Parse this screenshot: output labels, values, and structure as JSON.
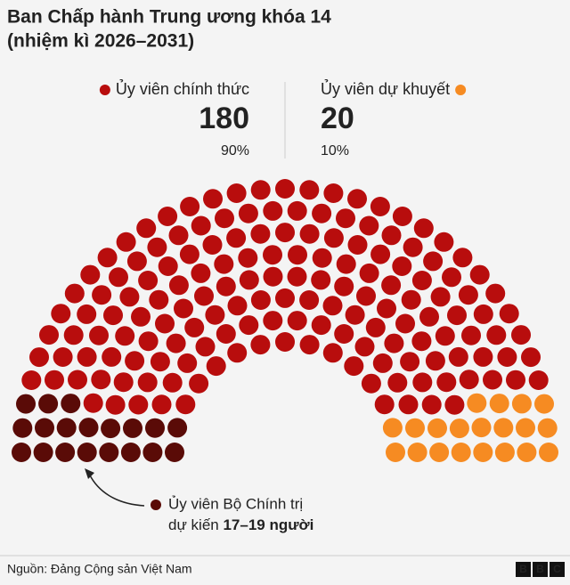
{
  "chart_data": {
    "type": "parliament",
    "title": [
      "Ban Chấp hành Trung ương khóa 14",
      "(nhiệm kì 2026–2031)"
    ],
    "series": [
      {
        "name": "Ủy viên chính thức",
        "value": 180,
        "share": 90,
        "share_label": "90%",
        "color": "#b80d0d"
      },
      {
        "name": "Ủy viên dự khuyết",
        "value": 20,
        "share": 10,
        "share_label": "10%",
        "color": "#f68b22"
      }
    ],
    "annotation": {
      "text": [
        "Ủy viên Bộ Chính trị",
        "dự kiến ",
        "17–19 người"
      ],
      "seats": 19,
      "color": "#5a0b07"
    },
    "source": "Nguồn: Đảng Cộng sản Việt Nam",
    "logo": [
      "B",
      "B",
      "C"
    ]
  }
}
